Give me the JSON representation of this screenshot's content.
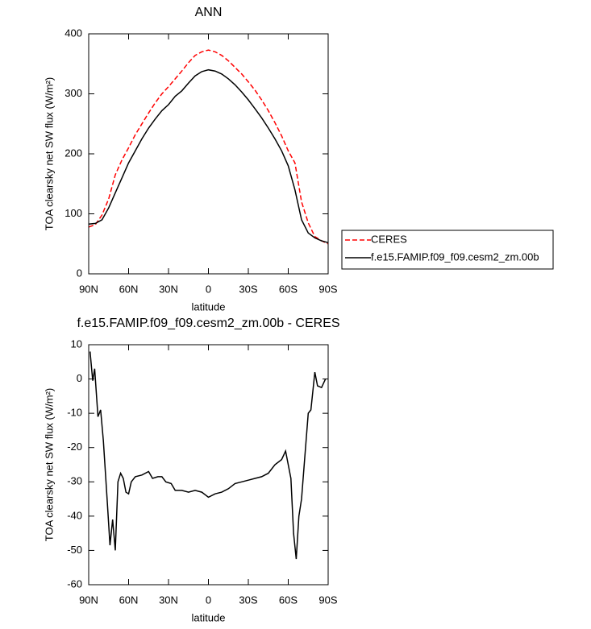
{
  "chart_data": [
    {
      "type": "line",
      "title": "ANN",
      "xlabel": "latitude",
      "ylabel": "TOA clearsky net SW flux (W/m²)",
      "xlim": [
        90,
        -90
      ],
      "ylim": [
        0,
        400
      ],
      "xticks": [
        {
          "value": 90,
          "label": "90N"
        },
        {
          "value": 60,
          "label": "60N"
        },
        {
          "value": 30,
          "label": "30N"
        },
        0,
        {
          "value": -30,
          "label": "30S"
        },
        {
          "value": -60,
          "label": "60S"
        },
        {
          "value": -90,
          "label": "90S"
        }
      ],
      "yticks": [
        0,
        100,
        200,
        300,
        400
      ],
      "legend": "right",
      "x": [
        90,
        85,
        80,
        75,
        70,
        65,
        60,
        55,
        50,
        45,
        40,
        35,
        30,
        25,
        20,
        15,
        10,
        5,
        0,
        -5,
        -10,
        -15,
        -20,
        -25,
        -30,
        -35,
        -40,
        -45,
        -50,
        -55,
        -60,
        -65,
        -70,
        -75,
        -80,
        -85,
        -90
      ],
      "series": [
        {
          "name": "CERES",
          "color": "#ff0000",
          "dash": true,
          "values": [
            78,
            82,
            98,
            125,
            165,
            190,
            210,
            232,
            250,
            268,
            285,
            300,
            312,
            325,
            338,
            352,
            364,
            370,
            373,
            370,
            364,
            355,
            344,
            333,
            320,
            306,
            290,
            272,
            252,
            230,
            205,
            185,
            120,
            85,
            62,
            55,
            50
          ]
        },
        {
          "name": "f.e15.FAMIP.f09_f09.cesm2_zm.00b",
          "color": "#000000",
          "dash": false,
          "values": [
            83,
            84,
            90,
            110,
            135,
            160,
            185,
            205,
            225,
            243,
            258,
            272,
            282,
            296,
            305,
            318,
            330,
            337,
            340,
            338,
            333,
            325,
            315,
            303,
            290,
            275,
            260,
            243,
            225,
            205,
            180,
            140,
            90,
            68,
            60,
            55,
            52
          ]
        }
      ]
    },
    {
      "type": "line",
      "title": "f.e15.FAMIP.f09_f09.cesm2_zm.00b - CERES",
      "xlabel": "latitude",
      "ylabel": "TOA clearsky net SW flux (W/m²)",
      "xlim": [
        90,
        -90
      ],
      "ylim": [
        -60,
        10
      ],
      "xticks": [
        {
          "value": 90,
          "label": "90N"
        },
        {
          "value": 60,
          "label": "60N"
        },
        {
          "value": 30,
          "label": "30N"
        },
        0,
        {
          "value": -30,
          "label": "30S"
        },
        {
          "value": -60,
          "label": "60S"
        },
        {
          "value": -90,
          "label": "90S"
        }
      ],
      "yticks": [
        -60,
        -50,
        -40,
        -30,
        -20,
        -10,
        0,
        10
      ],
      "x": [
        89,
        87,
        85.5,
        83,
        81,
        79,
        76,
        74,
        72,
        70,
        68,
        66,
        64,
        62,
        60,
        58,
        55,
        50,
        45,
        42,
        38,
        35,
        32,
        28,
        25,
        20,
        15,
        10,
        5,
        0,
        -5,
        -10,
        -15,
        -20,
        -25,
        -30,
        -35,
        -40,
        -45,
        -50,
        -55,
        -58,
        -62,
        -64,
        -66,
        -68,
        -70,
        -72,
        -75,
        -77,
        -80,
        -82,
        -85,
        -88
      ],
      "series": [
        {
          "color": "#000000",
          "dash": false,
          "values": [
            8,
            -0.5,
            3,
            -11,
            -9,
            -18,
            -36,
            -48.5,
            -41,
            -50,
            -30,
            -27.5,
            -29,
            -33,
            -33.5,
            -30,
            -28.5,
            -28,
            -27,
            -29,
            -28.5,
            -28.5,
            -30,
            -30.5,
            -32.5,
            -32.5,
            -33,
            -32.5,
            -33,
            -34.5,
            -33.5,
            -33,
            -32,
            -30.5,
            -30,
            -29.5,
            -29,
            -28.5,
            -27.5,
            -25,
            -23.5,
            -21,
            -29,
            -45,
            -52.5,
            -40,
            -35,
            -25,
            -10,
            -9,
            2,
            -2,
            -2.5,
            0
          ]
        }
      ]
    }
  ]
}
